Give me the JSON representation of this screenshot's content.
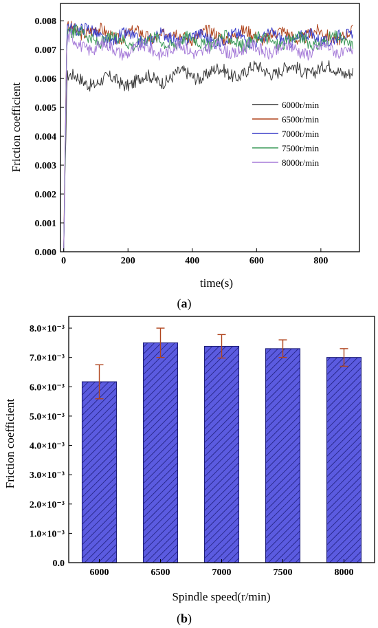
{
  "chart_data": [
    {
      "type": "line",
      "panel_label": "a",
      "xlabel": "time(s)",
      "ylabel": "Friction coefficient",
      "xlim": [
        -10,
        920
      ],
      "ylim": [
        0,
        0.0086
      ],
      "x_ticks": [
        0,
        200,
        400,
        600,
        800
      ],
      "y_ticks": [
        0.0,
        0.001,
        0.002,
        0.003,
        0.004,
        0.005,
        0.006,
        0.007,
        0.008
      ],
      "x_tick_labels": [
        "0",
        "200",
        "400",
        "600",
        "800"
      ],
      "y_tick_labels": [
        "0.000",
        "0.001",
        "0.002",
        "0.003",
        "0.004",
        "0.005",
        "0.006",
        "0.007",
        "0.008"
      ],
      "grid": false,
      "legend_position": "right",
      "series": [
        {
          "name": "6000r/min",
          "color": "#3a3a3a",
          "x": [
            0,
            10,
            50,
            100,
            150,
            200,
            250,
            300,
            350,
            400,
            450,
            500,
            550,
            600,
            650,
            700,
            750,
            800,
            850,
            900
          ],
          "y": [
            0.0,
            0.006,
            0.00595,
            0.0059,
            0.0059,
            0.0059,
            0.00595,
            0.006,
            0.0061,
            0.0061,
            0.0062,
            0.0062,
            0.0062,
            0.0063,
            0.0063,
            0.0063,
            0.0063,
            0.0063,
            0.0063,
            0.0063
          ]
        },
        {
          "name": "6500r/min",
          "color": "#b0451e",
          "x": [
            0,
            10,
            50,
            100,
            150,
            200,
            250,
            300,
            350,
            400,
            450,
            500,
            550,
            600,
            650,
            700,
            750,
            800,
            850,
            900
          ],
          "y": [
            0.0,
            0.0078,
            0.0077,
            0.0076,
            0.0075,
            0.0075,
            0.0075,
            0.0075,
            0.0075,
            0.0075,
            0.0075,
            0.0075,
            0.0075,
            0.0075,
            0.0075,
            0.0075,
            0.0075,
            0.0075,
            0.0075,
            0.0075
          ]
        },
        {
          "name": "7000r/min",
          "color": "#3b3ec9",
          "x": [
            0,
            10,
            50,
            100,
            150,
            200,
            250,
            300,
            350,
            400,
            450,
            500,
            550,
            600,
            650,
            700,
            750,
            800,
            850,
            900
          ],
          "y": [
            0.0,
            0.008,
            0.0077,
            0.0075,
            0.0074,
            0.0074,
            0.0074,
            0.0074,
            0.0074,
            0.0074,
            0.0074,
            0.0074,
            0.0074,
            0.0074,
            0.0074,
            0.0074,
            0.0074,
            0.0074,
            0.0074,
            0.0074
          ]
        },
        {
          "name": "7500r/min",
          "color": "#3c9a5a",
          "x": [
            0,
            10,
            50,
            100,
            150,
            200,
            250,
            300,
            350,
            400,
            450,
            500,
            550,
            600,
            650,
            700,
            750,
            800,
            850,
            900
          ],
          "y": [
            0.0,
            0.0076,
            0.0075,
            0.0074,
            0.0073,
            0.0073,
            0.0073,
            0.0073,
            0.0073,
            0.0073,
            0.0073,
            0.0073,
            0.0073,
            0.0073,
            0.0073,
            0.0073,
            0.0073,
            0.0073,
            0.0073,
            0.0073
          ]
        },
        {
          "name": "8000r/min",
          "color": "#a57ad8",
          "x": [
            0,
            10,
            50,
            100,
            150,
            200,
            250,
            300,
            350,
            400,
            450,
            500,
            550,
            600,
            650,
            700,
            750,
            800,
            850,
            900
          ],
          "y": [
            0.0,
            0.0073,
            0.0072,
            0.0071,
            0.007,
            0.007,
            0.007,
            0.007,
            0.007,
            0.007,
            0.007,
            0.007,
            0.007,
            0.007,
            0.007,
            0.007,
            0.007,
            0.007,
            0.007,
            0.007
          ]
        }
      ]
    },
    {
      "type": "bar",
      "panel_label": "b",
      "xlabel": "Spindle speed(r/min)",
      "ylabel": "Friction coefficient",
      "categories": [
        "6000",
        "6500",
        "7000",
        "7500",
        "8000"
      ],
      "values": [
        0.00617,
        0.0075,
        0.00738,
        0.0073,
        0.007
      ],
      "errors": [
        0.00058,
        0.0005,
        0.0004,
        0.0003,
        0.0003
      ],
      "ylim": [
        0,
        0.0084
      ],
      "y_ticks": [
        0.0,
        0.001,
        0.002,
        0.003,
        0.004,
        0.005,
        0.006,
        0.007,
        0.008
      ],
      "y_tick_labels": [
        "0.0",
        "1.0×10⁻³",
        "2.0×10⁻³",
        "3.0×10⁻³",
        "4.0×10⁻³",
        "5.0×10⁻³",
        "6.0×10⁻³",
        "7.0×10⁻³",
        "8.0×10⁻³"
      ],
      "bar_fill": "#5b5be0",
      "hatch": "diagonal",
      "error_bar_color": "#b0451e",
      "grid": false
    }
  ]
}
